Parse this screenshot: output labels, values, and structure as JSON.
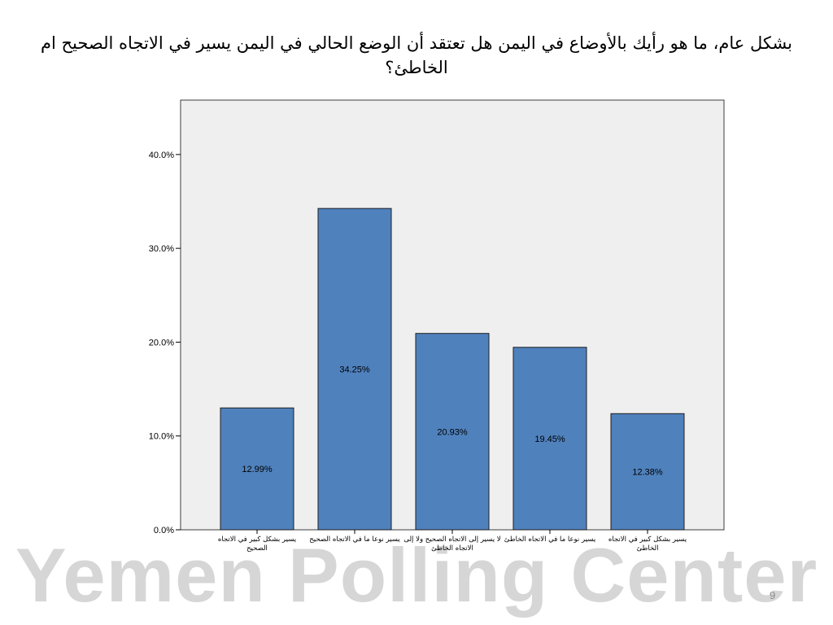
{
  "slide": {
    "title": "بشكل عام، ما هو رأيك بالأوضاع في اليمن هل تعتقد أن الوضع الحالي في اليمن يسير في الاتجاه الصحيح ام الخاطئ؟",
    "watermark": "Yemen Polling Center",
    "page_number": "9"
  },
  "colors": {
    "bar_fill": "#4f81bd",
    "bar_stroke": "#1f1f1f",
    "plot_background": "#efefef",
    "watermark": "#d6d6d6"
  },
  "chart_data": {
    "type": "bar",
    "categories": [
      "يسير بشكل كبير في الاتجاه الصحيح",
      "يسير نوعا ما في الاتجاه الصحيح",
      "لا يسير إلى الاتجاه الصحيح ولا إلى الاتجاه الخاطئ",
      "يسير نوعا ما في الاتجاه الخاطئ",
      "يسير بشكل كبير في الاتجاه الخاطئ"
    ],
    "values": [
      12.99,
      34.25,
      20.93,
      19.45,
      12.38
    ],
    "data_labels": [
      "12.99%",
      "34.25%",
      "20.93%",
      "19.45%",
      "12.38%"
    ],
    "y_ticks": [
      0,
      10,
      20,
      30,
      40
    ],
    "y_tick_labels": [
      "0.0%",
      "10.0%",
      "20.0%",
      "30.0%",
      "40.0%"
    ],
    "ylim": [
      0,
      45.8
    ],
    "grid": false,
    "legend": "none"
  }
}
